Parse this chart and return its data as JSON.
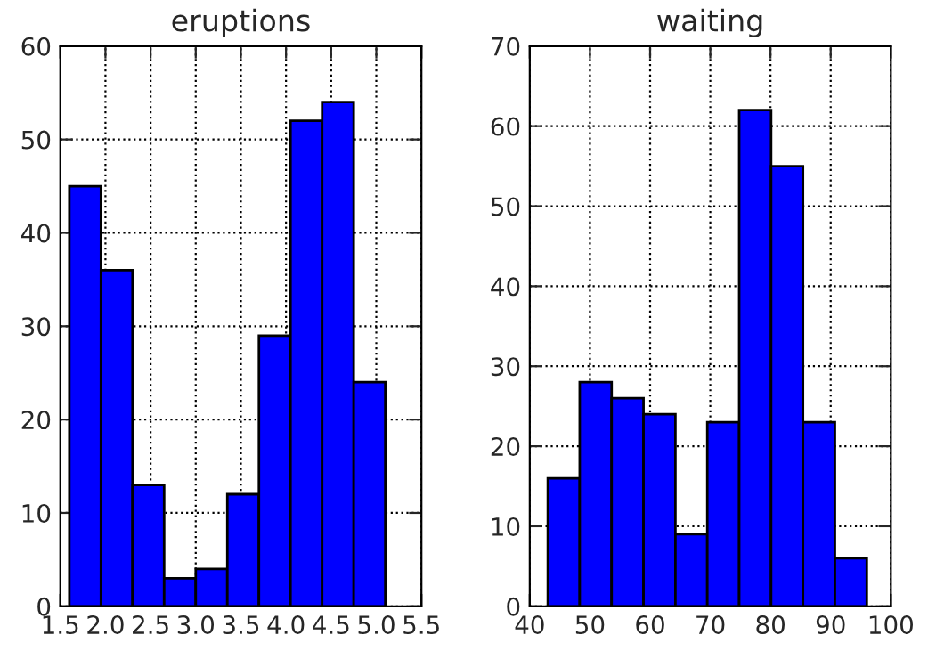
{
  "chart_data": [
    {
      "type": "histogram",
      "title": "eruptions",
      "bins": [
        1.6,
        1.95,
        2.3,
        2.65,
        3.0,
        3.35,
        3.7,
        4.05,
        4.4,
        4.75,
        5.1
      ],
      "values": [
        45,
        36,
        13,
        3,
        4,
        12,
        29,
        52,
        54,
        24
      ],
      "color": "#0000ff",
      "xlim": [
        1.5,
        5.5
      ],
      "xticks": [
        {
          "value": 1.5,
          "label": "1.5"
        },
        {
          "value": 2.0,
          "label": "2.0"
        },
        {
          "value": 2.5,
          "label": "2.5"
        },
        {
          "value": 3.0,
          "label": "3.0"
        },
        {
          "value": 3.5,
          "label": "3.5"
        },
        {
          "value": 4.0,
          "label": "4.0"
        },
        {
          "value": 4.5,
          "label": "4.5"
        },
        {
          "value": 5.0,
          "label": "5.0"
        },
        {
          "value": 5.5,
          "label": "5.5"
        }
      ],
      "ylim": [
        0,
        60
      ],
      "yticks": [
        0,
        10,
        20,
        30,
        40,
        50,
        60
      ],
      "grid": true
    },
    {
      "type": "histogram",
      "title": "waiting",
      "bins": [
        43,
        48.3,
        53.6,
        58.9,
        64.2,
        69.5,
        74.8,
        80.1,
        85.4,
        90.7,
        96
      ],
      "values": [
        16,
        28,
        26,
        24,
        9,
        23,
        62,
        55,
        23,
        6
      ],
      "color": "#0000ff",
      "xlim": [
        40,
        100
      ],
      "xticks": [
        40,
        50,
        60,
        70,
        80,
        90,
        100
      ],
      "ylim": [
        0,
        70
      ],
      "yticks": [
        0,
        10,
        20,
        30,
        40,
        50,
        60,
        70
      ],
      "grid": true
    }
  ]
}
